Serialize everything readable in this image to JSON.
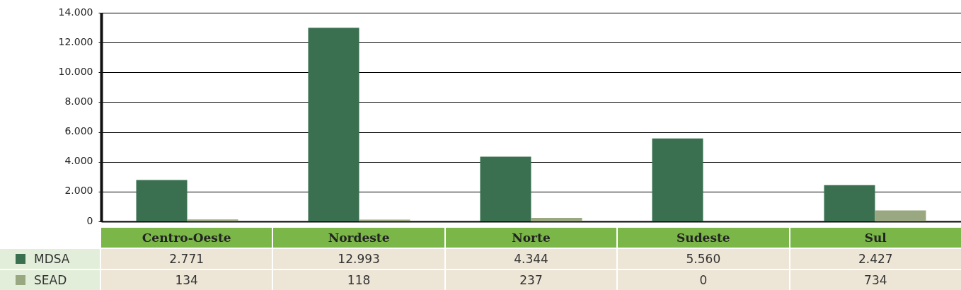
{
  "chart_data": {
    "type": "bar",
    "categories": [
      "Centro-Oeste",
      "Nordeste",
      "Norte",
      "Sudeste",
      "Sul"
    ],
    "series": [
      {
        "name": "MDSA",
        "color": "#3a7050",
        "values": [
          2771,
          12993,
          4344,
          5560,
          2427
        ],
        "value_labels": [
          "2.771",
          "12.993",
          "4.344",
          "5.560",
          "2.427"
        ]
      },
      {
        "name": "SEAD",
        "color": "#9aa882",
        "values": [
          134,
          118,
          237,
          0,
          734
        ],
        "value_labels": [
          "134",
          "118",
          "237",
          "0",
          "734"
        ]
      }
    ],
    "ylim": [
      0,
      14000
    ],
    "yticks": [
      0,
      {
        "value": 2000,
        "label": "2.000"
      },
      {
        "value": 4000,
        "label": "4.000"
      },
      {
        "value": 6000,
        "label": "6.000"
      },
      {
        "value": 8000,
        "label": "8.000"
      },
      {
        "value": 10000,
        "label": "10.000"
      },
      {
        "value": 12000,
        "label": "12.000"
      },
      {
        "value": 14000,
        "label": "14.000"
      }
    ],
    "grid": "y",
    "legend": "bottom left"
  }
}
